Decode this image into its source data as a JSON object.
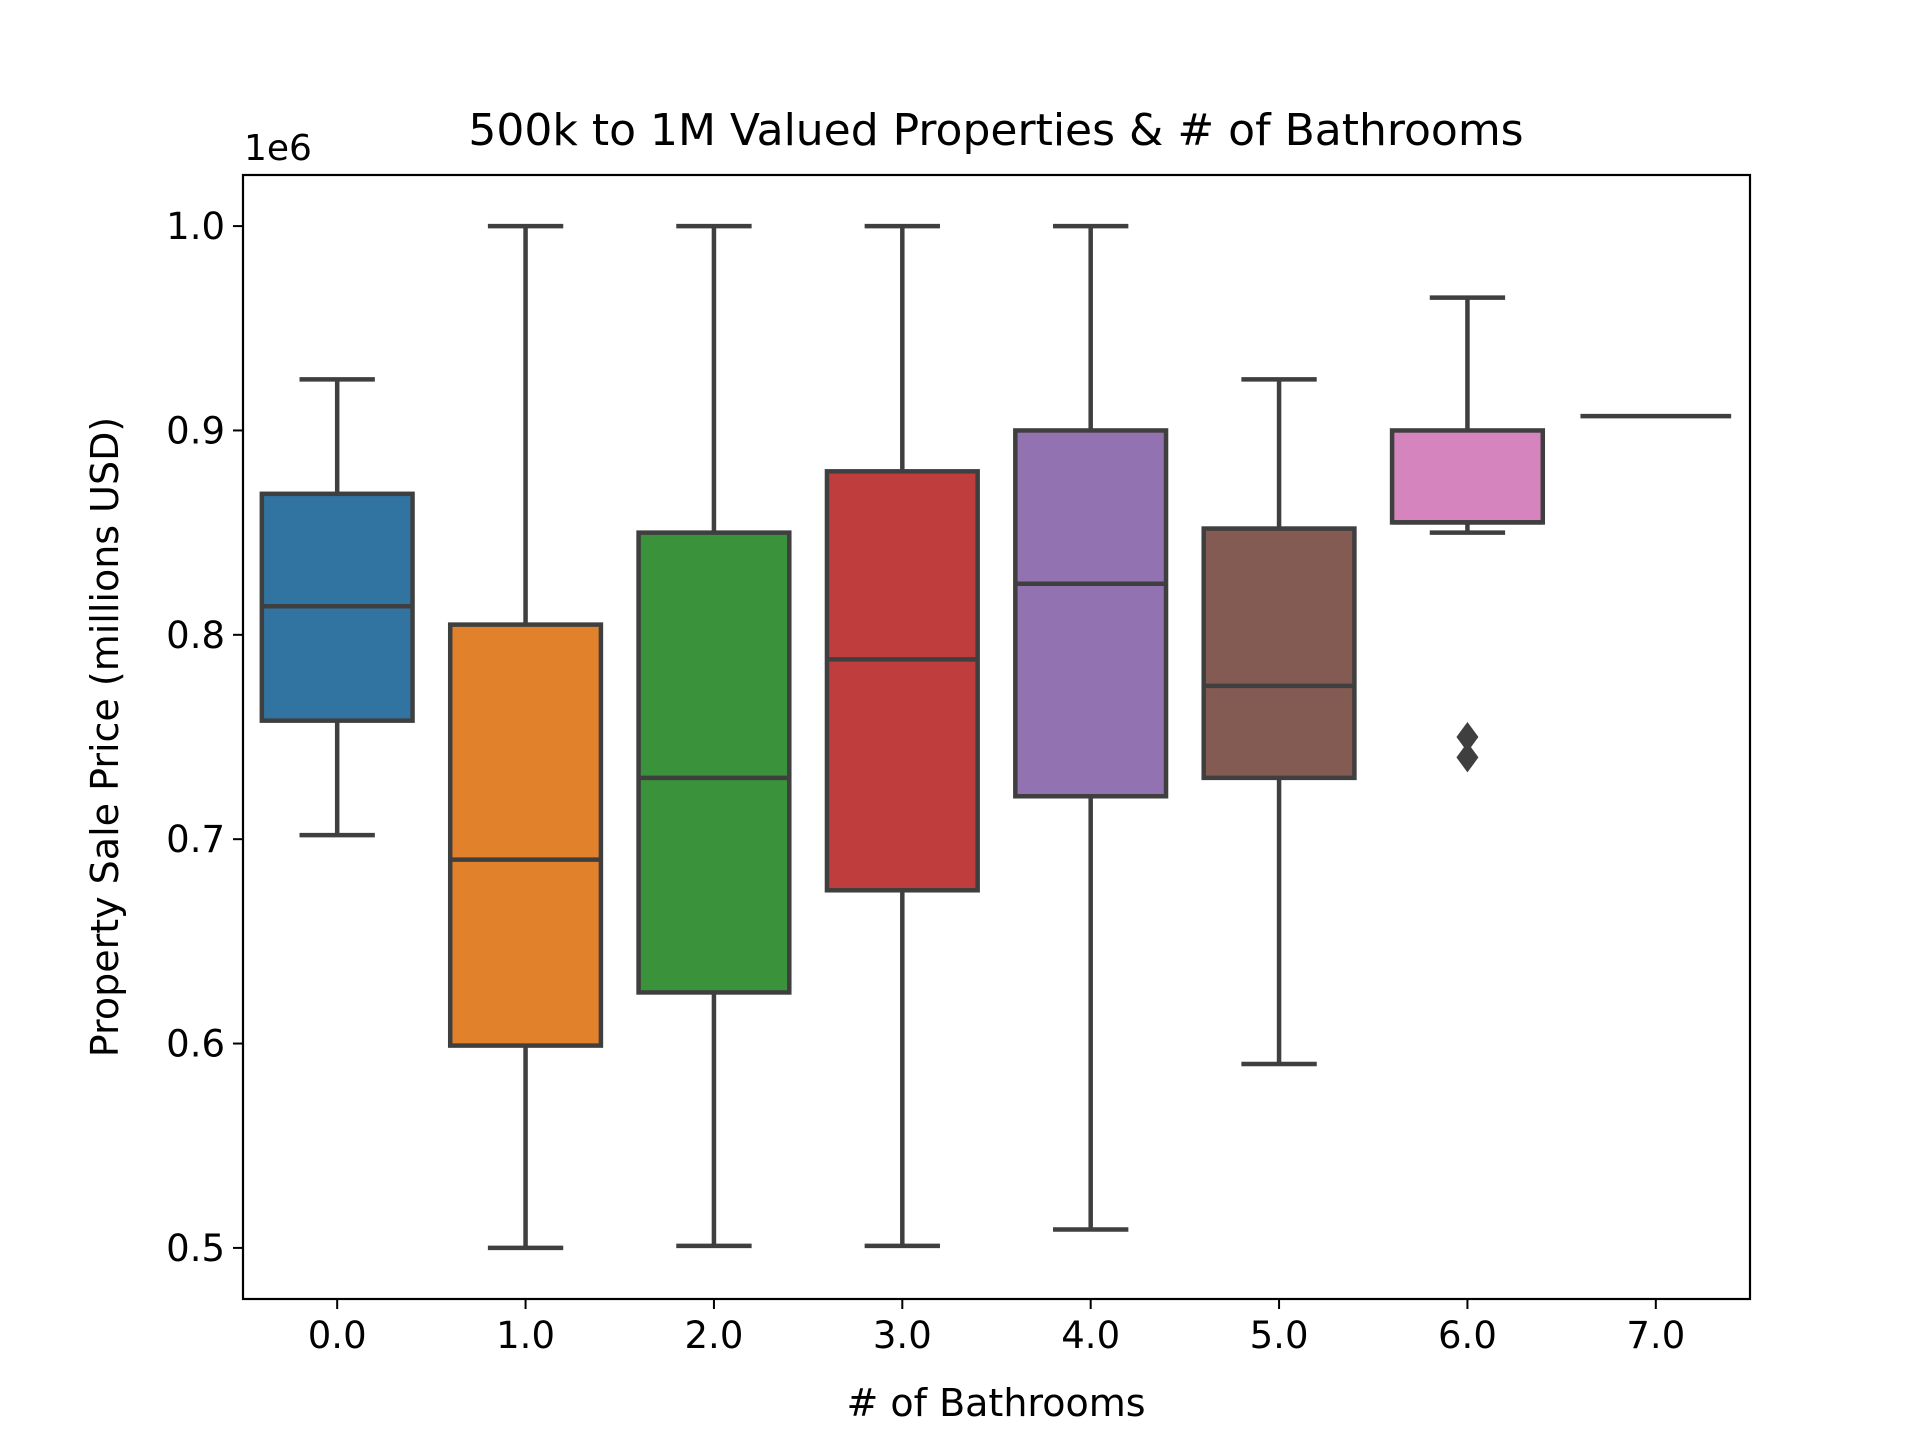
{
  "chart_data": {
    "type": "box",
    "title": "500k to 1M Valued Properties & # of Bathrooms",
    "xlabel": "# of Bathrooms",
    "ylabel": "Property Sale Price (millions USD)",
    "y_offset_label": "1e6",
    "ylim": [
      475000,
      1025000
    ],
    "y_ticks": [
      500000,
      600000,
      700000,
      800000,
      900000,
      1000000
    ],
    "y_tick_labels": [
      "0.5",
      "0.6",
      "0.7",
      "0.8",
      "0.9",
      "1.0"
    ],
    "categories": [
      "0.0",
      "1.0",
      "2.0",
      "3.0",
      "4.0",
      "5.0",
      "6.0",
      "7.0"
    ],
    "grid": false,
    "boxes": [
      {
        "category": "0.0",
        "whisker_low": 702000,
        "q1": 758000,
        "median": 814000,
        "q3": 869000,
        "whisker_high": 925000,
        "outliers": [],
        "color": "#3274a1"
      },
      {
        "category": "1.0",
        "whisker_low": 500000,
        "q1": 599000,
        "median": 690000,
        "q3": 805000,
        "whisker_high": 1000000,
        "outliers": [],
        "color": "#e1812c"
      },
      {
        "category": "2.0",
        "whisker_low": 501000,
        "q1": 625000,
        "median": 730000,
        "q3": 850000,
        "whisker_high": 1000000,
        "outliers": [],
        "color": "#3a923a"
      },
      {
        "category": "3.0",
        "whisker_low": 501000,
        "q1": 675000,
        "median": 788000,
        "q3": 880000,
        "whisker_high": 1000000,
        "outliers": [],
        "color": "#c03d3e"
      },
      {
        "category": "4.0",
        "whisker_low": 509000,
        "q1": 721000,
        "median": 825000,
        "q3": 900000,
        "whisker_high": 1000000,
        "outliers": [],
        "color": "#9372b2"
      },
      {
        "category": "5.0",
        "whisker_low": 590000,
        "q1": 730000,
        "median": 775000,
        "q3": 852000,
        "whisker_high": 925000,
        "outliers": [],
        "color": "#845b53"
      },
      {
        "category": "6.0",
        "whisker_low": 850000,
        "q1": 855000,
        "median": 855000,
        "q3": 900000,
        "whisker_high": 965000,
        "outliers": [
          740000,
          750000
        ],
        "color": "#d684bd"
      },
      {
        "category": "7.0",
        "whisker_low": 907000,
        "q1": 907000,
        "median": 907000,
        "q3": 907000,
        "whisker_high": 907000,
        "outliers": [],
        "color": "#7f7f7f"
      }
    ],
    "line_color": "#3f3f3f"
  }
}
